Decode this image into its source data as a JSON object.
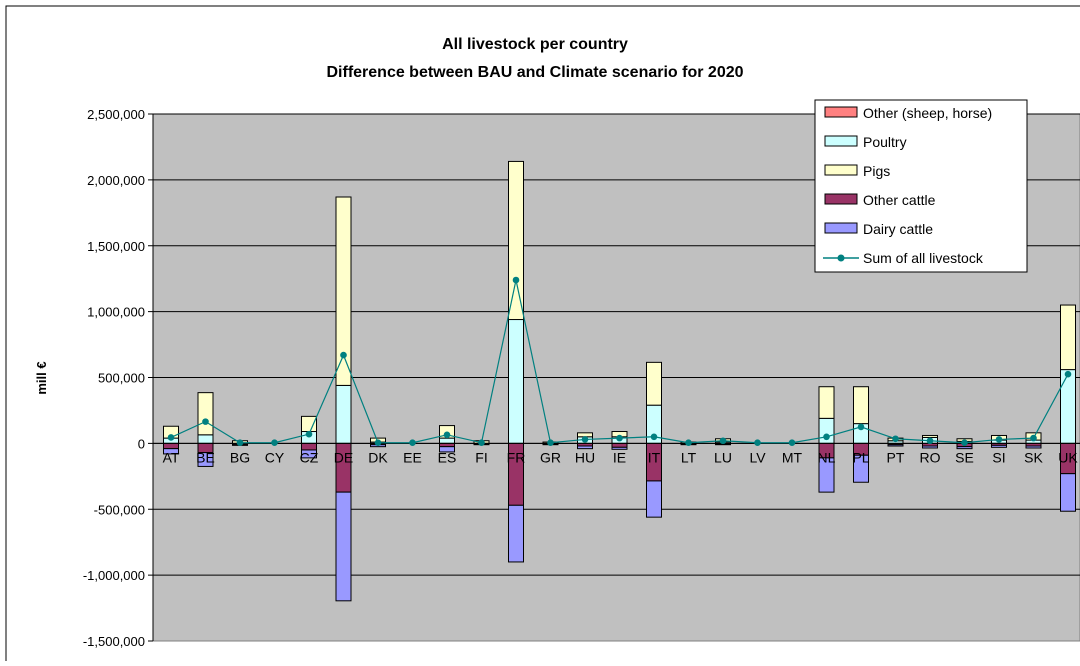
{
  "chart_data": {
    "type": "bar",
    "title_line1": "All livestock per country",
    "title_line2": "Difference between BAU and Climate scenario for 2020",
    "ylabel": "mill €",
    "xlabel": "",
    "ylim": [
      -1500000,
      2500000
    ],
    "yticks": [
      2500000,
      2000000,
      1500000,
      1000000,
      500000,
      0,
      -500000,
      -1000000,
      -1500000
    ],
    "ytick_labels": [
      "2,500,000",
      "2,000,000",
      "1,500,000",
      "1,000,000",
      "500,000",
      "0",
      "-500,000",
      "-1,000,000",
      "-1,500,000"
    ],
    "grid": true,
    "legend_position": "top-right",
    "categories": [
      "AT",
      "BE",
      "BG",
      "CY",
      "CZ",
      "DE",
      "DK",
      "EE",
      "ES",
      "FI",
      "FR",
      "GR",
      "HU",
      "IE",
      "IT",
      "LT",
      "LU",
      "LV",
      "MT",
      "NL",
      "PL",
      "PT",
      "RO",
      "SE",
      "SI",
      "SK",
      "UK"
    ],
    "series": [
      {
        "name": "Other (sheep, horse)",
        "kind": "bar",
        "color": "#ff8080",
        "values": [
          0,
          0,
          0,
          0,
          0,
          0,
          0,
          0,
          0,
          0,
          0,
          0,
          0,
          0,
          0,
          0,
          0,
          0,
          0,
          0,
          0,
          0,
          0,
          0,
          0,
          0,
          0
        ]
      },
      {
        "name": "Poultry",
        "kind": "bar",
        "color": "#ccffff",
        "values": [
          40000,
          65000,
          0,
          0,
          90000,
          440000,
          10000,
          0,
          40000,
          0,
          940000,
          0,
          50000,
          50000,
          290000,
          0,
          10000,
          0,
          0,
          190000,
          150000,
          20000,
          45000,
          15000,
          25000,
          25000,
          560000
        ]
      },
      {
        "name": "Pigs",
        "kind": "bar",
        "color": "#ffffcc",
        "values": [
          90000,
          320000,
          20000,
          0,
          115000,
          1430000,
          30000,
          0,
          95000,
          20000,
          1200000,
          10000,
          30000,
          40000,
          325000,
          10000,
          25000,
          0,
          0,
          240000,
          280000,
          20000,
          15000,
          20000,
          35000,
          55000,
          490000
        ]
      },
      {
        "name": "Other cattle",
        "kind": "bar",
        "color": "#993366",
        "values": [
          -40000,
          -70000,
          -10000,
          0,
          -50000,
          -370000,
          -10000,
          0,
          -25000,
          -5000,
          -470000,
          -5000,
          -20000,
          -30000,
          -285000,
          -5000,
          -5000,
          0,
          0,
          -110000,
          -90000,
          -10000,
          -20000,
          -25000,
          -15000,
          -20000,
          -230000
        ]
      },
      {
        "name": "Dairy cattle",
        "kind": "bar",
        "color": "#9999ff",
        "values": [
          -40000,
          -105000,
          -5000,
          0,
          -60000,
          -825000,
          -15000,
          0,
          -40000,
          -5000,
          -430000,
          -5000,
          -20000,
          -15000,
          -275000,
          -5000,
          -5000,
          0,
          0,
          -260000,
          -205000,
          -10000,
          -15000,
          -15000,
          -15000,
          -15000,
          -285000
        ]
      },
      {
        "name": "Sum of all livestock",
        "kind": "line",
        "color": "#008080",
        "values": [
          45000,
          165000,
          5000,
          5000,
          70000,
          670000,
          5000,
          5000,
          65000,
          5000,
          1240000,
          5000,
          30000,
          40000,
          50000,
          5000,
          20000,
          5000,
          5000,
          50000,
          125000,
          35000,
          20000,
          5000,
          30000,
          40000,
          525000
        ]
      }
    ]
  }
}
